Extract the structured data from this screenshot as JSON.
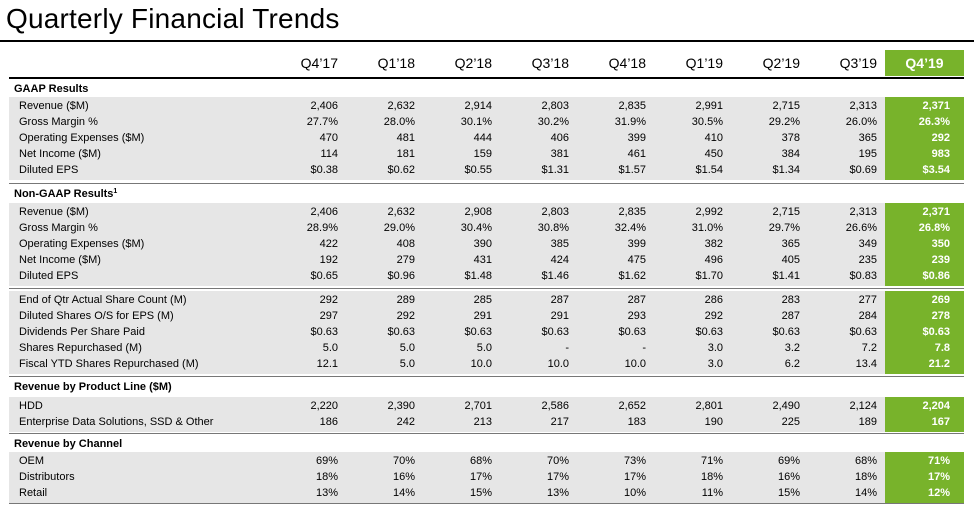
{
  "title": "Quarterly Financial Trends",
  "accent_color": "#78b32b",
  "band_color": "#e6e6e6",
  "columns": [
    "Q4’17",
    "Q1’18",
    "Q2’18",
    "Q3’18",
    "Q4’18",
    "Q1’19",
    "Q2’19",
    "Q3’19",
    "Q4’19"
  ],
  "highlight_column": 8,
  "sections": [
    {
      "title": "GAAP Results",
      "footnote": "",
      "rows": [
        {
          "label": "Revenue ($M)",
          "values": [
            "2,406",
            "2,632",
            "2,914",
            "2,803",
            "2,835",
            "2,991",
            "2,715",
            "2,313",
            "2,371"
          ]
        },
        {
          "label": "Gross Margin %",
          "values": [
            "27.7%",
            "28.0%",
            "30.1%",
            "30.2%",
            "31.9%",
            "30.5%",
            "29.2%",
            "26.0%",
            "26.3%"
          ]
        },
        {
          "label": "Operating Expenses ($M)",
          "values": [
            "470",
            "481",
            "444",
            "406",
            "399",
            "410",
            "378",
            "365",
            "292"
          ]
        },
        {
          "label": "Net Income ($M)",
          "values": [
            "114",
            "181",
            "159",
            "381",
            "461",
            "450",
            "384",
            "195",
            "983"
          ]
        },
        {
          "label": "Diluted EPS",
          "values": [
            "$0.38",
            "$0.62",
            "$0.55",
            "$1.31",
            "$1.57",
            "$1.54",
            "$1.34",
            "$0.69",
            "$3.54"
          ]
        }
      ]
    },
    {
      "title": "Non-GAAP Results",
      "footnote": "1",
      "rows": [
        {
          "label": "Revenue ($M)",
          "values": [
            "2,406",
            "2,632",
            "2,908",
            "2,803",
            "2,835",
            "2,992",
            "2,715",
            "2,313",
            "2,371"
          ]
        },
        {
          "label": "Gross Margin %",
          "values": [
            "28.9%",
            "29.0%",
            "30.4%",
            "30.8%",
            "32.4%",
            "31.0%",
            "29.7%",
            "26.6%",
            "26.8%"
          ]
        },
        {
          "label": "Operating Expenses ($M)",
          "values": [
            "422",
            "408",
            "390",
            "385",
            "399",
            "382",
            "365",
            "349",
            "350"
          ]
        },
        {
          "label": "Net Income ($M)",
          "values": [
            "192",
            "279",
            "431",
            "424",
            "475",
            "496",
            "405",
            "235",
            "239"
          ]
        },
        {
          "label": "Diluted EPS",
          "values": [
            "$0.65",
            "$0.96",
            "$1.48",
            "$1.46",
            "$1.62",
            "$1.70",
            "$1.41",
            "$0.83",
            "$0.86"
          ]
        }
      ]
    },
    {
      "title": "",
      "footnote": "",
      "rows": [
        {
          "label": "End of Qtr Actual Share Count (M)",
          "values": [
            "292",
            "289",
            "285",
            "287",
            "287",
            "286",
            "283",
            "277",
            "269"
          ]
        },
        {
          "label": "Diluted Shares O/S for EPS (M)",
          "values": [
            "297",
            "292",
            "291",
            "291",
            "293",
            "292",
            "287",
            "284",
            "278"
          ]
        },
        {
          "label": "Dividends Per Share Paid",
          "values": [
            "$0.63",
            "$0.63",
            "$0.63",
            "$0.63",
            "$0.63",
            "$0.63",
            "$0.63",
            "$0.63",
            "$0.63"
          ]
        },
        {
          "label": "Shares Repurchased (M)",
          "values": [
            "5.0",
            "5.0",
            "5.0",
            "-",
            "-",
            "3.0",
            "3.2",
            "7.2",
            "7.8"
          ]
        },
        {
          "label": "Fiscal YTD Shares Repurchased (M)",
          "values": [
            "12.1",
            "5.0",
            "10.0",
            "10.0",
            "10.0",
            "3.0",
            "6.2",
            "13.4",
            "21.2"
          ]
        }
      ]
    },
    {
      "title": "Revenue by Product Line ($M)",
      "footnote": "",
      "rows": [
        {
          "label": "HDD",
          "values": [
            "2,220",
            "2,390",
            "2,701",
            "2,586",
            "2,652",
            "2,801",
            "2,490",
            "2,124",
            "2,204"
          ]
        },
        {
          "label": "Enterprise Data Solutions, SSD & Other",
          "values": [
            "186",
            "242",
            "213",
            "217",
            "183",
            "190",
            "225",
            "189",
            "167"
          ]
        }
      ]
    },
    {
      "title": "Revenue by Channel",
      "footnote": "",
      "rows": [
        {
          "label": "OEM",
          "values": [
            "69%",
            "70%",
            "68%",
            "70%",
            "73%",
            "71%",
            "69%",
            "68%",
            "71%"
          ]
        },
        {
          "label": "Distributors",
          "values": [
            "18%",
            "16%",
            "17%",
            "17%",
            "17%",
            "18%",
            "16%",
            "18%",
            "17%"
          ]
        },
        {
          "label": "Retail",
          "values": [
            "13%",
            "14%",
            "15%",
            "13%",
            "10%",
            "11%",
            "15%",
            "14%",
            "12%"
          ]
        }
      ]
    }
  ]
}
